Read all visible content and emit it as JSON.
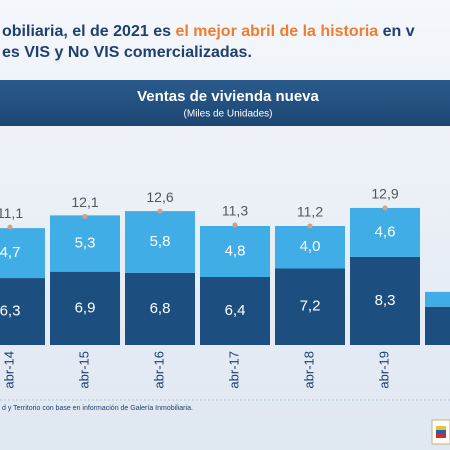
{
  "header": {
    "line1_parts": [
      "obiliaria, el de 2021 es ",
      "el mejor abril de la historia",
      " en v"
    ],
    "line2": "es VIS y No VIS comercializadas."
  },
  "chart_data": {
    "type": "stacked_bar",
    "title": "Ventas de vivienda nueva",
    "subtitle": "(Miles de Unidades)",
    "categories": [
      "abr-14",
      "abr-15",
      "abr-16",
      "abr-17",
      "abr-18",
      "abr-19",
      null
    ],
    "series": [
      {
        "color": "#1c4f80",
        "values": [
          6.3,
          6.9,
          6.8,
          6.4,
          7.2,
          8.3,
          3.6
        ],
        "value_labels": [
          "6,3",
          "6,9",
          "6,8",
          "6,4",
          "7,2",
          "8,3",
          null
        ]
      },
      {
        "color": "#41ade6",
        "values": [
          4.7,
          5.3,
          5.8,
          4.8,
          4.0,
          4.6,
          1.4
        ],
        "value_labels": [
          "4,7",
          "5,3",
          "5,8",
          "4,8",
          "4,0",
          "4,6",
          null
        ]
      }
    ],
    "totals": {
      "color": "#d99c86",
      "values": [
        11.1,
        12.1,
        12.6,
        11.3,
        11.2,
        12.9,
        5.0
      ],
      "value_labels": [
        "11,1",
        "12,1",
        "12,6",
        "11,3",
        "11,2",
        "12,9",
        null
      ]
    },
    "ylim": [
      0,
      16
    ]
  },
  "footer": {
    "source": "d y Territorio con base en información de Galería Inmobiliaria."
  }
}
